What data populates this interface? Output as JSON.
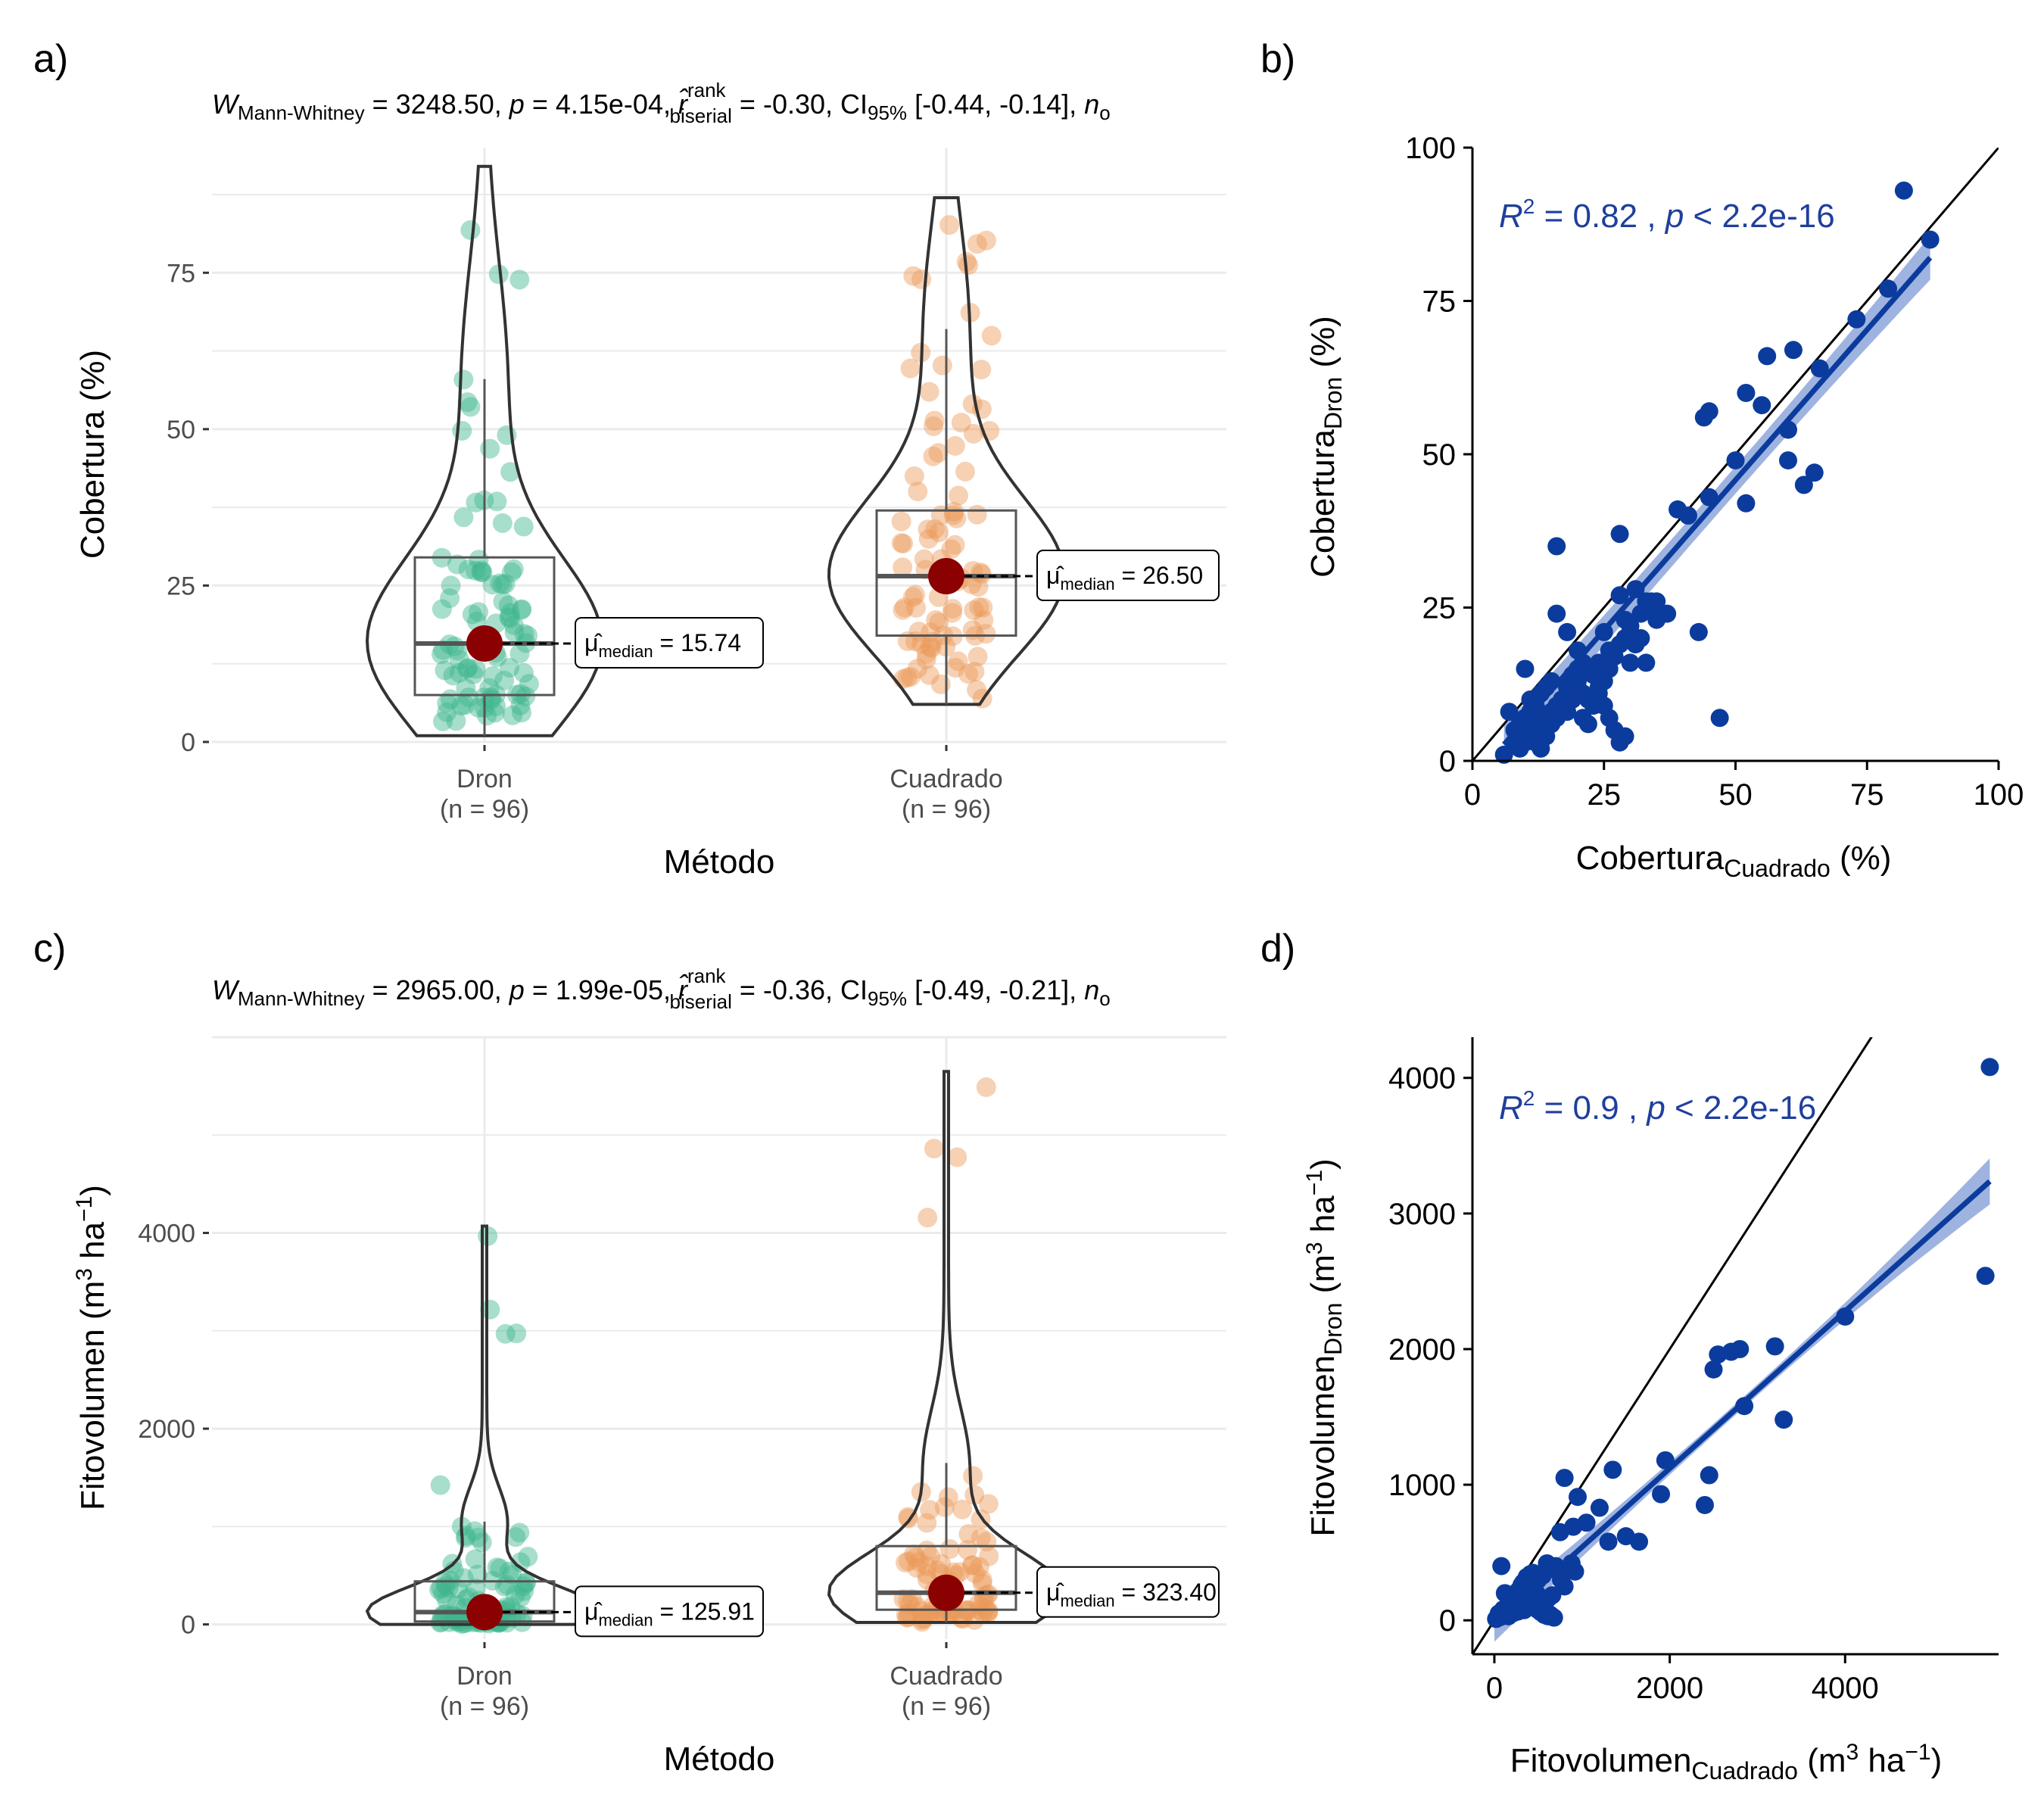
{
  "panels": {
    "a": {
      "letter": "a)"
    },
    "b": {
      "letter": "b)"
    },
    "c": {
      "letter": "c)"
    },
    "d": {
      "letter": "d)"
    }
  },
  "colors": {
    "dron": "#3fb68f",
    "cuadrado": "#ec9a58",
    "mean_point": "#8b0000",
    "regression": "#0b3c9d",
    "regression_band": "#7f9ad6",
    "identity": "#000000",
    "gridline": "#ebebeb"
  },
  "chart_data": [
    {
      "id": "a",
      "type": "violin-box-jitter",
      "subtitle": {
        "W": "W",
        "W_sub": "Mann-Whitney",
        "W_val": " = 3248.50, ",
        "p": "p",
        "p_val": " = 4.15e-04, ",
        "r": "r̂",
        "r_sup": "rank",
        "r_sub": "biserial",
        "r_val": " = -0.30, CI",
        "ci_sub": "95%",
        "ci_val": " [-0.44, -0.14], ",
        "n": "n",
        "n_sub": "o"
      },
      "xlabel": "Método",
      "ylabel": "Cobertura (%)",
      "ylim": [
        0,
        95
      ],
      "yticks": [
        0,
        25,
        50,
        75
      ],
      "categories": [
        {
          "name": "Dron",
          "n_label": "(n = 96)",
          "q1": 7.5,
          "median": 15.74,
          "q3": 29.5,
          "whisker_low": 1,
          "whisker_high": 58,
          "min": 1,
          "max": 92,
          "median_label": "15.74",
          "mu": "μ̂",
          "mu_sub": "median",
          "equals": " = "
        },
        {
          "name": "Cuadrado",
          "n_label": "(n = 96)",
          "q1": 17,
          "median": 26.5,
          "q3": 37,
          "whisker_low": 6,
          "whisker_high": 66,
          "min": 6,
          "max": 87,
          "median_label": "26.50",
          "mu": "μ̂",
          "mu_sub": "median",
          "equals": " = "
        }
      ]
    },
    {
      "id": "b",
      "type": "scatter",
      "xlabel": "Cobertura",
      "xlabel_sub": "Cuadrado",
      "xlabel_unit": " (%)",
      "ylabel": "Cobertura",
      "ylabel_sub": "Dron",
      "ylabel_unit": " (%)",
      "xlim": [
        0,
        100
      ],
      "ylim": [
        0,
        100
      ],
      "xticks": [
        0,
        25,
        50,
        75,
        100
      ],
      "yticks": [
        0,
        25,
        50,
        75,
        100
      ],
      "stat": {
        "r2": "R",
        "r2_sup": "2",
        "r2_val": " = 0.82 , ",
        "p": "p",
        "p_val": " < 2.2e-16"
      },
      "regression": {
        "intercept": -3.2,
        "slope": 0.98,
        "x_range": [
          6,
          87
        ],
        "band_half_width_ends": [
          2.2,
          3.6
        ]
      },
      "identity_line": true,
      "points": [
        [
          82,
          93
        ],
        [
          87,
          85
        ],
        [
          79,
          77
        ],
        [
          73,
          72
        ],
        [
          66,
          64
        ],
        [
          61,
          67
        ],
        [
          56,
          66
        ],
        [
          52,
          60
        ],
        [
          55,
          58
        ],
        [
          60,
          54
        ],
        [
          44,
          56
        ],
        [
          45,
          57
        ],
        [
          50,
          49
        ],
        [
          65,
          47
        ],
        [
          63,
          45
        ],
        [
          60,
          49
        ],
        [
          52,
          42
        ],
        [
          45,
          43
        ],
        [
          39,
          41
        ],
        [
          41,
          40
        ],
        [
          35,
          26
        ],
        [
          28,
          37
        ],
        [
          16,
          35
        ],
        [
          34,
          25
        ],
        [
          35,
          24
        ],
        [
          31,
          28
        ],
        [
          33,
          26
        ],
        [
          28,
          27
        ],
        [
          29,
          23
        ],
        [
          30,
          21
        ],
        [
          31,
          19
        ],
        [
          32,
          20
        ],
        [
          25,
          21
        ],
        [
          26,
          18
        ],
        [
          24,
          16
        ],
        [
          22,
          15
        ],
        [
          20,
          18
        ],
        [
          21,
          16
        ],
        [
          19,
          14
        ],
        [
          18,
          12
        ],
        [
          17,
          10
        ],
        [
          16,
          9
        ],
        [
          15,
          8
        ],
        [
          14,
          7
        ],
        [
          13,
          6
        ],
        [
          12,
          5
        ],
        [
          11,
          4
        ],
        [
          10,
          3
        ],
        [
          9,
          2
        ],
        [
          8,
          3
        ],
        [
          7,
          8
        ],
        [
          10,
          15
        ],
        [
          11,
          10
        ],
        [
          12,
          9
        ],
        [
          13,
          11
        ],
        [
          14,
          12
        ],
        [
          15,
          13
        ],
        [
          16,
          24
        ],
        [
          18,
          21
        ],
        [
          20,
          15
        ],
        [
          20,
          13
        ],
        [
          21,
          11
        ],
        [
          22,
          10
        ],
        [
          23,
          14
        ],
        [
          24,
          12
        ],
        [
          25,
          9
        ],
        [
          26,
          7
        ],
        [
          27,
          5
        ],
        [
          28,
          3
        ],
        [
          29,
          4
        ],
        [
          30,
          16
        ],
        [
          33,
          16
        ],
        [
          35,
          23
        ],
        [
          37,
          24
        ],
        [
          43,
          21
        ],
        [
          47,
          7
        ],
        [
          6,
          1
        ],
        [
          8,
          5
        ],
        [
          9,
          6
        ],
        [
          10,
          7
        ],
        [
          11,
          8
        ],
        [
          12,
          3
        ],
        [
          13,
          2
        ],
        [
          14,
          4
        ],
        [
          15,
          6
        ],
        [
          16,
          7
        ],
        [
          17,
          9
        ],
        [
          18,
          8
        ],
        [
          19,
          10
        ],
        [
          20,
          12
        ],
        [
          21,
          7
        ],
        [
          22,
          6
        ],
        [
          23,
          9
        ],
        [
          24,
          11
        ],
        [
          25,
          13
        ],
        [
          26,
          15
        ],
        [
          27,
          17
        ],
        [
          28,
          19
        ],
        [
          29,
          20
        ],
        [
          30,
          22
        ],
        [
          32,
          24
        ],
        [
          34,
          26
        ]
      ]
    },
    {
      "id": "c",
      "type": "violin-box-jitter",
      "subtitle": {
        "W": "W",
        "W_sub": "Mann-Whitney",
        "W_val": " = 2965.00, ",
        "p": "p",
        "p_val": " = 1.99e-05, ",
        "r": "r̂",
        "r_sup": "rank",
        "r_sub": "biserial",
        "r_val": " = -0.36, CI",
        "ci_sub": "95%",
        "ci_val": " [-0.49, -0.21], ",
        "n": "n",
        "n_sub": "o"
      },
      "xlabel": "Método",
      "ylabel": "Fitovolumen (m",
      "ylabel_sup": "3",
      "ylabel_mid": " ha",
      "ylabel_sup2": "−1",
      "ylabel_end": ")",
      "ylim": [
        -150,
        6000
      ],
      "yticks": [
        0,
        2000,
        4000
      ],
      "categories": [
        {
          "name": "Dron",
          "n_label": "(n = 96)",
          "q1": 30,
          "median": 125.91,
          "q3": 440,
          "whisker_low": 0,
          "whisker_high": 1050,
          "min": 0,
          "max": 4070,
          "median_label": "125.91",
          "mu": "μ̂",
          "mu_sub": "median",
          "equals": " = "
        },
        {
          "name": "Cuadrado",
          "n_label": "(n = 96)",
          "q1": 150,
          "median": 323.4,
          "q3": 800,
          "whisker_low": 20,
          "whisker_high": 1650,
          "min": 20,
          "max": 5650,
          "median_label": "323.40",
          "mu": "μ̂",
          "mu_sub": "median",
          "equals": " = "
        }
      ]
    },
    {
      "id": "d",
      "type": "scatter",
      "xlabel": "Fitovolumen",
      "xlabel_sub": "Cuadrado",
      "xlabel_unit": " (m",
      "xlabel_sup": "3",
      "xlabel_mid": " ha",
      "xlabel_sup2": "−1",
      "xlabel_end": ")",
      "ylabel": "Fitovolumen",
      "ylabel_sub": "Dron",
      "ylabel_unit": " (m",
      "ylabel_sup": "3",
      "ylabel_mid": " ha",
      "ylabel_sup2": "−1",
      "ylabel_end": ")",
      "xlim": [
        -250,
        5750
      ],
      "ylim": [
        -250,
        4300
      ],
      "xticks": [
        0,
        2000,
        4000
      ],
      "yticks": [
        0,
        1000,
        2000,
        3000,
        4000
      ],
      "stat": {
        "r2": "R",
        "r2_sup": "2",
        "r2_val": " = 0.9 , ",
        "p": "p",
        "p_val": " < 2.2e-16"
      },
      "regression": {
        "intercept": -40,
        "slope": 0.58,
        "x_range": [
          0,
          5650
        ],
        "band_half_width_ends": [
          40,
          170
        ]
      },
      "identity_line": true,
      "points": [
        [
          5650,
          4080
        ],
        [
          5600,
          2540
        ],
        [
          4000,
          2240
        ],
        [
          3200,
          2020
        ],
        [
          2800,
          2000
        ],
        [
          2700,
          1980
        ],
        [
          2550,
          1960
        ],
        [
          2500,
          1850
        ],
        [
          2850,
          1580
        ],
        [
          3300,
          1480
        ],
        [
          2450,
          1070
        ],
        [
          2400,
          850
        ],
        [
          1950,
          1180
        ],
        [
          1900,
          930
        ],
        [
          1650,
          580
        ],
        [
          1500,
          620
        ],
        [
          1350,
          1110
        ],
        [
          1300,
          580
        ],
        [
          1200,
          830
        ],
        [
          1050,
          720
        ],
        [
          950,
          910
        ],
        [
          900,
          690
        ],
        [
          800,
          1050
        ],
        [
          750,
          650
        ],
        [
          700,
          400
        ],
        [
          650,
          380
        ],
        [
          600,
          420
        ],
        [
          550,
          330
        ],
        [
          500,
          300
        ],
        [
          450,
          280
        ],
        [
          400,
          250
        ],
        [
          350,
          200
        ],
        [
          300,
          180
        ],
        [
          250,
          150
        ],
        [
          200,
          120
        ],
        [
          150,
          100
        ],
        [
          100,
          80
        ],
        [
          50,
          50
        ],
        [
          80,
          400
        ],
        [
          120,
          200
        ],
        [
          160,
          30
        ],
        [
          200,
          60
        ],
        [
          240,
          90
        ],
        [
          280,
          130
        ],
        [
          320,
          170
        ],
        [
          360,
          240
        ],
        [
          400,
          300
        ],
        [
          440,
          350
        ],
        [
          480,
          200
        ],
        [
          520,
          150
        ],
        [
          560,
          100
        ],
        [
          600,
          60
        ],
        [
          640,
          40
        ],
        [
          680,
          20
        ],
        [
          720,
          380
        ],
        [
          760,
          300
        ],
        [
          800,
          250
        ],
        [
          850,
          380
        ],
        [
          880,
          420
        ],
        [
          920,
          360
        ],
        [
          20,
          10
        ],
        [
          40,
          20
        ],
        [
          60,
          30
        ],
        [
          90,
          40
        ],
        [
          110,
          60
        ],
        [
          130,
          70
        ],
        [
          170,
          90
        ],
        [
          190,
          110
        ],
        [
          210,
          130
        ],
        [
          230,
          170
        ],
        [
          260,
          210
        ],
        [
          290,
          230
        ],
        [
          310,
          260
        ],
        [
          330,
          280
        ],
        [
          370,
          320
        ],
        [
          410,
          340
        ],
        [
          450,
          120
        ],
        [
          490,
          80
        ],
        [
          530,
          60
        ],
        [
          570,
          40
        ],
        [
          610,
          30
        ],
        [
          30,
          15
        ],
        [
          70,
          25
        ],
        [
          140,
          35
        ],
        [
          180,
          45
        ],
        [
          220,
          55
        ],
        [
          270,
          65
        ],
        [
          340,
          75
        ],
        [
          380,
          95
        ],
        [
          420,
          105
        ],
        [
          460,
          115
        ],
        [
          500,
          125
        ],
        [
          540,
          135
        ],
        [
          580,
          145
        ],
        [
          620,
          165
        ],
        [
          660,
          185
        ]
      ]
    }
  ]
}
